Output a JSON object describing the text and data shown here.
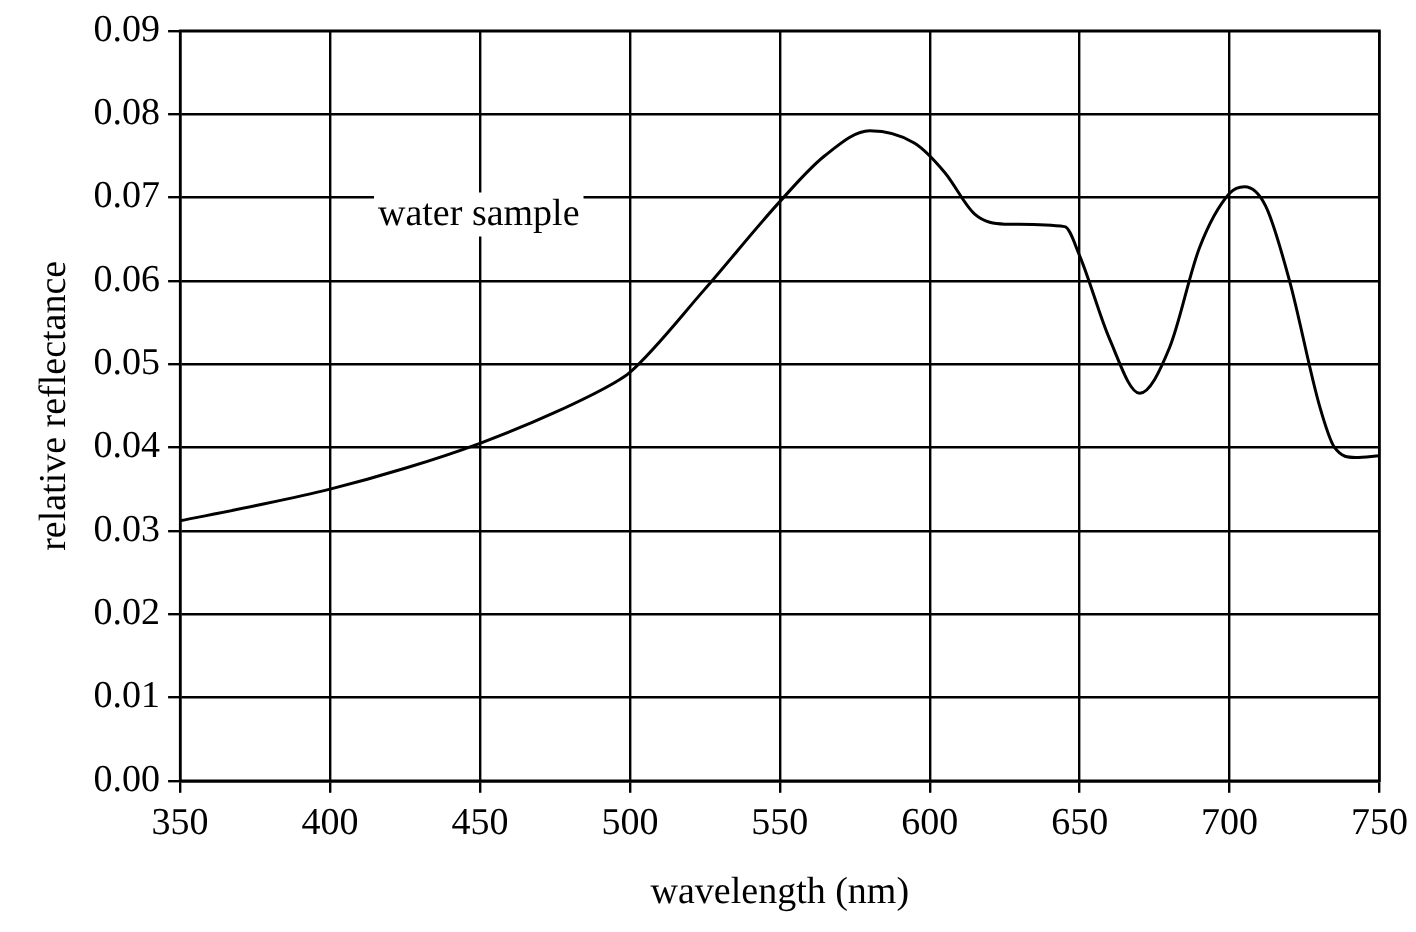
{
  "chart_data": {
    "type": "line",
    "xlabel": "wavelength (nm)",
    "ylabel": "relative reflectance",
    "annotations": [
      "water sample"
    ],
    "xlim": [
      350,
      750
    ],
    "xticks": [
      350,
      400,
      450,
      500,
      550,
      600,
      650,
      700,
      750
    ],
    "ylim": [
      0,
      0.09
    ],
    "yticks": [
      {
        "value": 0,
        "label": "0.00"
      },
      {
        "value": 0.01,
        "label": "0.01"
      },
      {
        "value": 0.02,
        "label": "0.02"
      },
      {
        "value": 0.03,
        "label": "0.03"
      },
      {
        "value": 0.04,
        "label": "0.04"
      },
      {
        "value": 0.05,
        "label": "0.05"
      },
      {
        "value": 0.06,
        "label": "0.06"
      },
      {
        "value": 0.07,
        "label": "0.07"
      },
      {
        "value": 0.08,
        "label": "0.08"
      },
      {
        "value": 0.09,
        "label": "0.09"
      }
    ],
    "grid": true,
    "legend": false,
    "marker": "none",
    "line_style": "solid",
    "series": [
      {
        "color": "#000000",
        "x": [
          350,
          375,
          400,
          425,
          450,
          475,
          495,
          500,
          525,
          550,
          565,
          580,
          595,
          605,
          615,
          625,
          645,
          650,
          660,
          670,
          680,
          690,
          700,
          705,
          712,
          720,
          730,
          735,
          742,
          750
        ],
        "values": [
          0.0312,
          0.033,
          0.035,
          0.0375,
          0.0405,
          0.0442,
          0.0478,
          0.049,
          0.059,
          0.0695,
          0.075,
          0.078,
          0.0765,
          0.073,
          0.068,
          0.0668,
          0.0665,
          0.063,
          0.053,
          0.0465,
          0.052,
          0.064,
          0.0705,
          0.0713,
          0.069,
          0.06,
          0.045,
          0.04,
          0.0388,
          0.039
        ]
      }
    ]
  }
}
